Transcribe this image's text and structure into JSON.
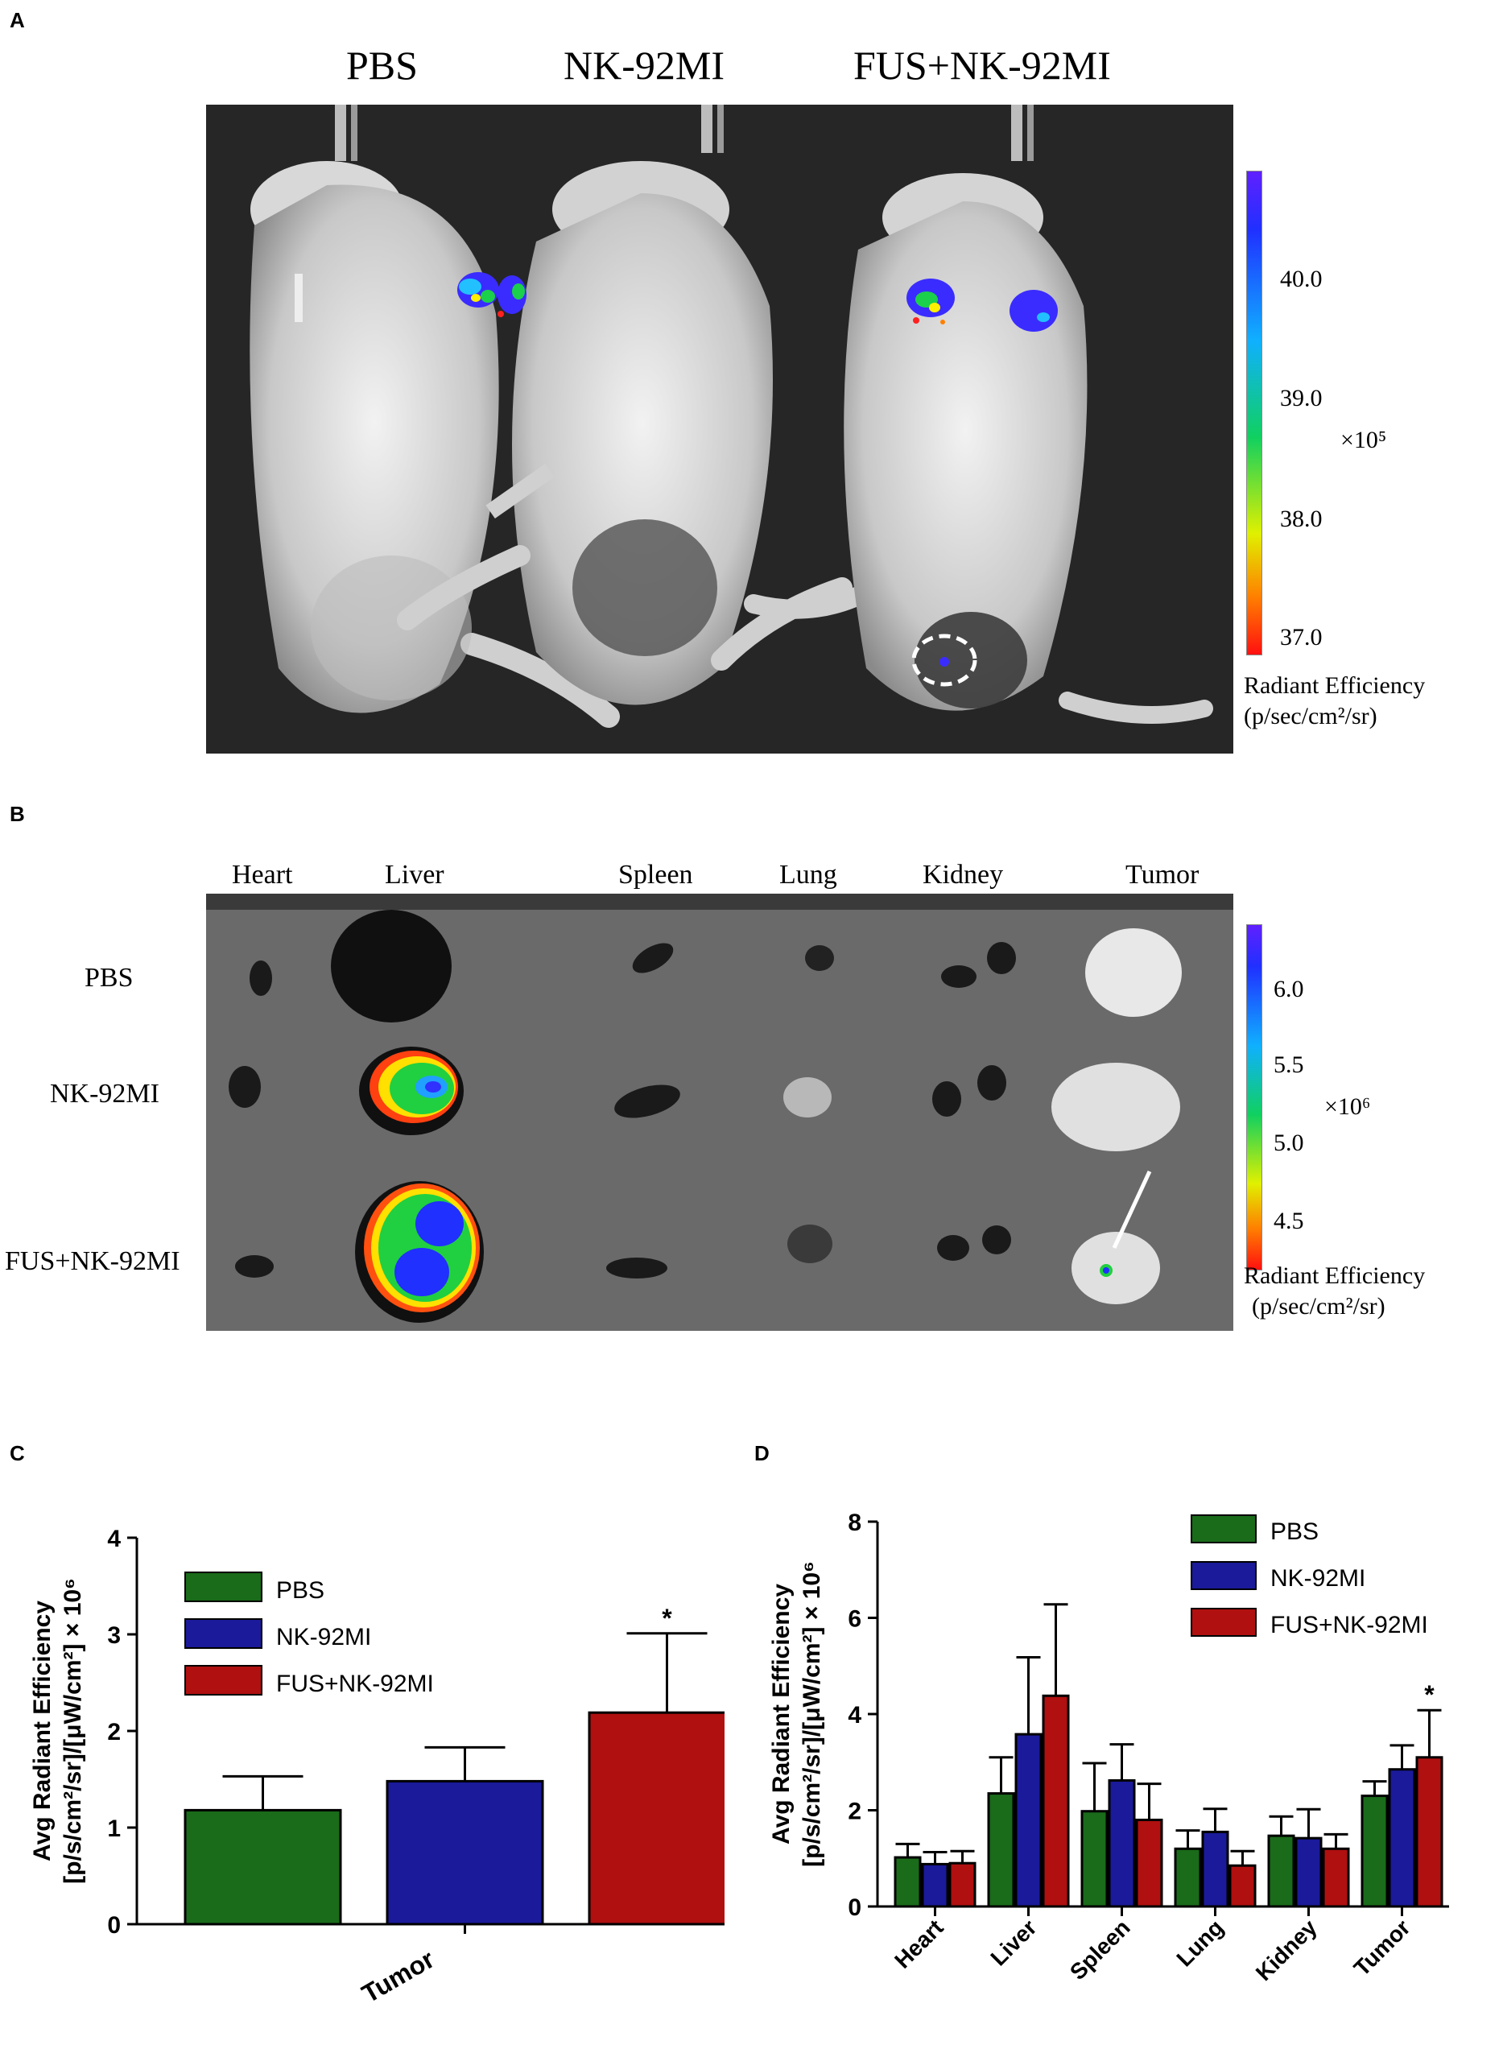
{
  "panelA": {
    "letter": "A",
    "groups": [
      "PBS",
      "NK-92MI",
      "FUS+NK-92MI"
    ],
    "colorbar": {
      "ticks": [
        "40.0",
        "39.0",
        "38.0",
        "37.0"
      ],
      "multiplier": "×10⁵",
      "title": "Radiant Efficiency",
      "units": "(p/sec/cm²/sr)"
    }
  },
  "panelB": {
    "letter": "B",
    "organs": [
      "Heart",
      "Liver",
      "Spleen",
      "Lung",
      "Kidney",
      "Tumor"
    ],
    "groups": [
      "PBS",
      "NK-92MI",
      "FUS+NK-92MI"
    ],
    "colorbar": {
      "ticks": [
        "6.0",
        "5.5",
        "5.0",
        "4.5"
      ],
      "multiplier": "×10⁶",
      "title": "Radiant Efficiency",
      "units": "(p/sec/cm²/sr)"
    }
  },
  "chart_data": [
    {
      "panel": "C",
      "type": "bar",
      "categories": [
        "Tumor"
      ],
      "series": [
        {
          "name": "PBS",
          "values": [
            1.18
          ],
          "errors": [
            0.35
          ],
          "color": "#1a6b1a"
        },
        {
          "name": "NK-92MI",
          "values": [
            1.48
          ],
          "errors": [
            0.35
          ],
          "color": "#1a1a9a"
        },
        {
          "name": "FUS+NK-92MI",
          "values": [
            2.19
          ],
          "errors": [
            0.82
          ],
          "color": "#b01010"
        }
      ],
      "ylabel_line1": "Avg Radiant Efficiency",
      "ylabel_line2": "[p/s/cm²/sr]/[μW/cm²] × 10⁶",
      "ylim": [
        0,
        4
      ],
      "yticks": [
        "0",
        "1",
        "2",
        "3",
        "4"
      ],
      "annotations": [
        {
          "series": "FUS+NK-92MI",
          "category": "Tumor",
          "text": "*"
        }
      ],
      "legend": "top-left"
    },
    {
      "panel": "D",
      "type": "bar",
      "categories": [
        "Heart",
        "Liver",
        "Spleen",
        "Lung",
        "Kidney",
        "Tumor"
      ],
      "series": [
        {
          "name": "PBS",
          "values": [
            1.02,
            2.35,
            1.98,
            1.2,
            1.47,
            2.3
          ],
          "errors": [
            0.28,
            0.75,
            1.0,
            0.38,
            0.4,
            0.3
          ],
          "color": "#1a6b1a"
        },
        {
          "name": "NK-92MI",
          "values": [
            0.88,
            3.58,
            2.62,
            1.55,
            1.42,
            2.85
          ],
          "errors": [
            0.25,
            1.6,
            0.75,
            0.48,
            0.6,
            0.5
          ],
          "color": "#1a1a9a"
        },
        {
          "name": "FUS+NK-92MI",
          "values": [
            0.9,
            4.38,
            1.8,
            0.85,
            1.2,
            3.1
          ],
          "errors": [
            0.25,
            1.9,
            0.75,
            0.3,
            0.3,
            0.98
          ],
          "color": "#b01010"
        }
      ],
      "ylabel_line1": "Avg Radiant Efficiency",
      "ylabel_line2": "[p/s/cm²/sr]/[μW/cm²] × 10⁶",
      "ylim": [
        0,
        8
      ],
      "yticks": [
        "0",
        "2",
        "4",
        "6",
        "8"
      ],
      "annotations": [
        {
          "series": "FUS+NK-92MI",
          "category": "Tumor",
          "text": "*"
        }
      ],
      "legend": "top-right"
    }
  ]
}
